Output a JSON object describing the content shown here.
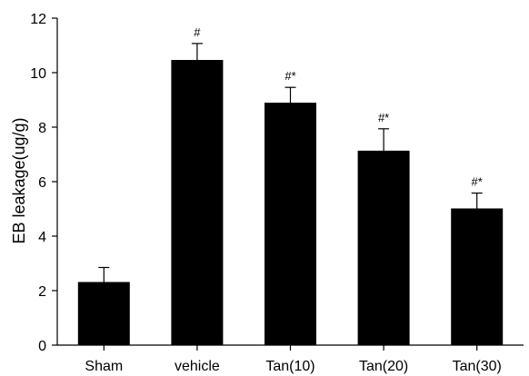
{
  "chart_data": {
    "type": "bar",
    "title": "",
    "xlabel": "",
    "ylabel": "EB leakage(ug/g)",
    "ylim": [
      0,
      12
    ],
    "yticks": [
      0,
      2,
      4,
      6,
      8,
      10,
      12
    ],
    "categories": [
      "Sham",
      "vehicle",
      "Tan(10)",
      "Tan(20)",
      "Tan(30)"
    ],
    "values": [
      2.3,
      10.45,
      8.88,
      7.12,
      5.0
    ],
    "errors": [
      0.55,
      0.62,
      0.58,
      0.82,
      0.58
    ],
    "significance": [
      "",
      "#",
      "#*",
      "#*",
      "#*"
    ],
    "bar_color": "#000000",
    "grid": false,
    "legend": "none"
  }
}
